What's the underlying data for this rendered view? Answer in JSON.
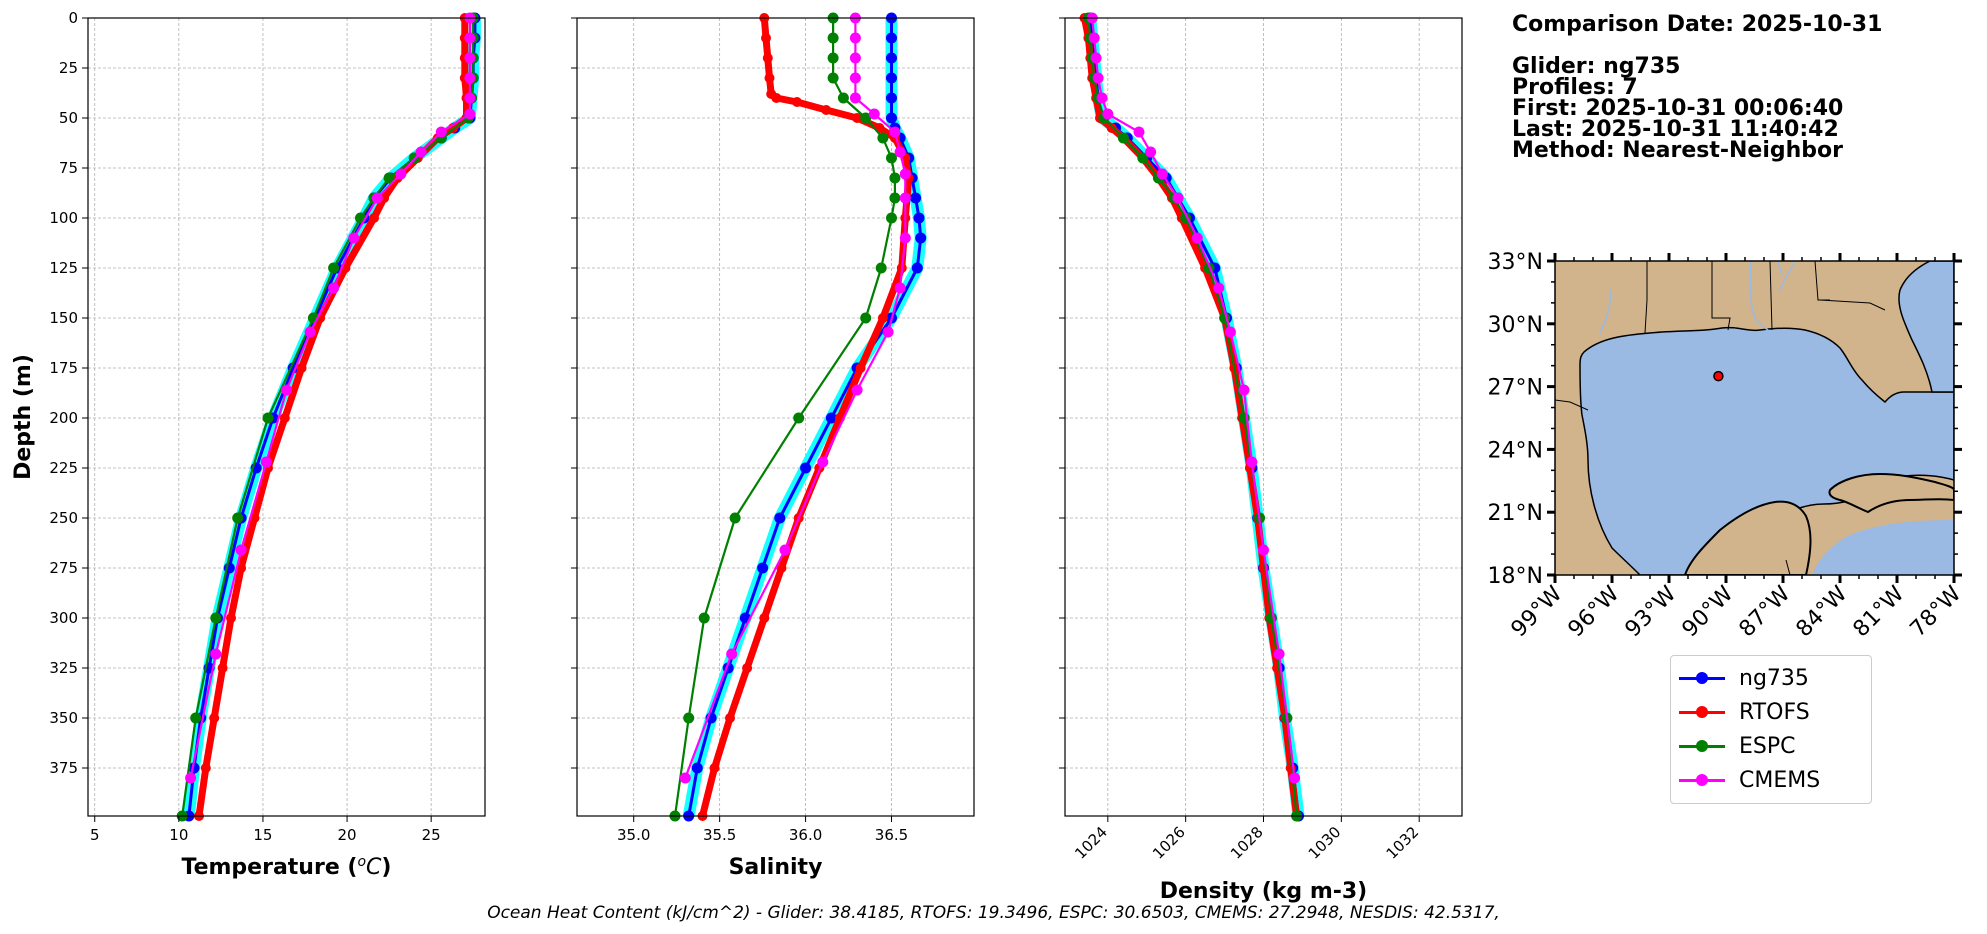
{
  "info": {
    "comparison_date": "Comparison Date: 2025-10-31",
    "glider": "Glider: ng735",
    "profiles": "Profiles: 7",
    "first": "First: 2025-10-31 00:06:40",
    "last": "Last: 2025-10-31 11:40:42",
    "method": "Method: Nearest-Neighbor"
  },
  "footer": "Ocean Heat Content (kJ/cm^2) - Glider: 38.4185,  RTOFS: 19.3496,  ESPC: 30.6503,  CMEMS: 27.2948,  NESDIS: 42.5317,",
  "colors": {
    "glider": "#0000ff",
    "glider_raw": "#00ffff",
    "rtofs": "#ff0000",
    "espc": "#008000",
    "cmems": "#ff00ff",
    "land": "#d2b48c",
    "ocean": "#9ab9e3"
  },
  "legend": [
    {
      "label": "ng735",
      "color": "#0000ff"
    },
    {
      "label": "RTOFS",
      "color": "#ff0000"
    },
    {
      "label": "ESPC",
      "color": "#008000"
    },
    {
      "label": "CMEMS",
      "color": "#ff00ff"
    }
  ],
  "chart_data": [
    {
      "type": "line",
      "xlabel": "Temperature ($^oC$)",
      "ylabel": "Depth (m)",
      "xlim": [
        4.6,
        28.2
      ],
      "ylim": [
        399,
        0
      ],
      "xticks": [
        5,
        10,
        15,
        20,
        25
      ],
      "yticks": [
        0,
        25,
        50,
        75,
        100,
        125,
        150,
        175,
        200,
        225,
        250,
        275,
        300,
        325,
        350,
        375
      ],
      "grid": true,
      "series": [
        {
          "name": "ng735",
          "depth": [
            0,
            10,
            20,
            30,
            40,
            50,
            55,
            60,
            70,
            80,
            90,
            100,
            125,
            150,
            175,
            200,
            225,
            250,
            275,
            300,
            325,
            350,
            375,
            399
          ],
          "values": [
            27.6,
            27.6,
            27.5,
            27.5,
            27.4,
            27.3,
            26.4,
            25.6,
            24.0,
            22.6,
            21.6,
            21.0,
            19.4,
            18.1,
            16.8,
            15.6,
            14.6,
            13.7,
            13.0,
            12.3,
            11.8,
            11.3,
            10.9,
            10.6
          ]
        },
        {
          "name": "RTOFS",
          "depth": [
            0,
            10,
            20,
            30,
            40,
            50,
            55,
            60,
            70,
            80,
            90,
            100,
            125,
            150,
            175,
            200,
            225,
            250,
            275,
            300,
            325,
            350,
            375,
            399
          ],
          "values": [
            27.0,
            27.0,
            27.0,
            27.0,
            27.1,
            27.1,
            26.3,
            25.4,
            24.2,
            23.0,
            22.2,
            21.6,
            19.9,
            18.4,
            17.3,
            16.3,
            15.3,
            14.5,
            13.7,
            13.1,
            12.6,
            12.1,
            11.6,
            11.2
          ]
        },
        {
          "name": "ESPC",
          "depth": [
            0,
            10,
            20,
            30,
            40,
            50,
            60,
            70,
            80,
            90,
            100,
            125,
            150,
            200,
            250,
            300,
            350,
            399
          ],
          "values": [
            27.5,
            27.5,
            27.5,
            27.5,
            27.4,
            27.2,
            25.6,
            24.0,
            22.5,
            21.6,
            20.8,
            19.2,
            18.0,
            15.3,
            13.5,
            12.2,
            11.0,
            10.2
          ]
        },
        {
          "name": "CMEMS",
          "depth": [
            0,
            10,
            20,
            30,
            40,
            48,
            57,
            67,
            78,
            90,
            110,
            135,
            157,
            186,
            222,
            266,
            318,
            380
          ],
          "values": [
            27.3,
            27.3,
            27.3,
            27.3,
            27.3,
            27.3,
            25.6,
            24.4,
            23.2,
            21.8,
            20.4,
            19.2,
            17.8,
            16.4,
            15.2,
            13.7,
            12.2,
            10.7
          ]
        }
      ]
    },
    {
      "type": "line",
      "xlabel": "Salinity",
      "xlim": [
        34.67,
        36.98
      ],
      "ylim": [
        399,
        0
      ],
      "xticks": [
        35.0,
        35.5,
        36.0,
        36.5
      ],
      "yticks": [
        0,
        25,
        50,
        75,
        100,
        125,
        150,
        175,
        200,
        225,
        250,
        275,
        300,
        325,
        350,
        375
      ],
      "grid": true,
      "series": [
        {
          "name": "ng735",
          "depth": [
            0,
            10,
            20,
            30,
            40,
            50,
            55,
            60,
            70,
            80,
            90,
            100,
            110,
            125,
            150,
            175,
            200,
            225,
            250,
            275,
            300,
            325,
            350,
            375,
            399
          ],
          "values": [
            36.5,
            36.5,
            36.5,
            36.5,
            36.5,
            36.5,
            36.52,
            36.55,
            36.6,
            36.62,
            36.64,
            36.66,
            36.67,
            36.65,
            36.5,
            36.3,
            36.15,
            36.0,
            35.85,
            35.75,
            35.65,
            35.55,
            35.45,
            35.37,
            35.32
          ]
        },
        {
          "name": "RTOFS",
          "depth": [
            0,
            10,
            20,
            30,
            38,
            40,
            42,
            46,
            50,
            55,
            60,
            70,
            80,
            100,
            125,
            150,
            175,
            200,
            225,
            250,
            275,
            300,
            325,
            350,
            375,
            399
          ],
          "values": [
            35.76,
            35.77,
            35.78,
            35.79,
            35.8,
            35.83,
            35.95,
            36.12,
            36.3,
            36.43,
            36.52,
            36.58,
            36.6,
            36.58,
            36.56,
            36.45,
            36.32,
            36.2,
            36.08,
            35.96,
            35.86,
            35.76,
            35.66,
            35.56,
            35.47,
            35.4
          ]
        },
        {
          "name": "ESPC",
          "depth": [
            0,
            10,
            20,
            30,
            40,
            50,
            60,
            70,
            80,
            90,
            100,
            125,
            150,
            200,
            250,
            300,
            350,
            399
          ],
          "values": [
            36.16,
            36.16,
            36.16,
            36.16,
            36.22,
            36.35,
            36.45,
            36.5,
            36.52,
            36.52,
            36.5,
            36.44,
            36.35,
            35.96,
            35.59,
            35.41,
            35.32,
            35.24
          ]
        },
        {
          "name": "CMEMS",
          "depth": [
            0,
            10,
            20,
            30,
            40,
            48,
            57,
            67,
            78,
            90,
            110,
            135,
            157,
            186,
            222,
            266,
            318,
            380
          ],
          "values": [
            36.29,
            36.29,
            36.29,
            36.29,
            36.29,
            36.4,
            36.52,
            36.55,
            36.58,
            36.58,
            36.58,
            36.55,
            36.48,
            36.3,
            36.1,
            35.88,
            35.57,
            35.3
          ]
        }
      ]
    },
    {
      "type": "line",
      "xlabel": "Density (kg m-3)",
      "xlim": [
        1022.9,
        1033.1
      ],
      "ylim": [
        399,
        0
      ],
      "xticks": [
        1024,
        1026,
        1028,
        1030,
        1032
      ],
      "yticks": [
        0,
        25,
        50,
        75,
        100,
        125,
        150,
        175,
        200,
        225,
        250,
        275,
        300,
        325,
        350,
        375
      ],
      "grid": true,
      "series": [
        {
          "name": "ng735",
          "depth": [
            0,
            10,
            20,
            30,
            40,
            50,
            55,
            60,
            70,
            80,
            90,
            100,
            125,
            150,
            175,
            200,
            225,
            250,
            275,
            300,
            325,
            350,
            375,
            399
          ],
          "values": [
            1023.55,
            1023.6,
            1023.65,
            1023.7,
            1023.75,
            1023.85,
            1024.2,
            1024.5,
            1025.0,
            1025.5,
            1025.8,
            1026.1,
            1026.75,
            1027.05,
            1027.3,
            1027.5,
            1027.7,
            1027.85,
            1028.0,
            1028.2,
            1028.4,
            1028.55,
            1028.75,
            1028.9
          ]
        },
        {
          "name": "RTOFS",
          "depth": [
            0,
            10,
            20,
            30,
            40,
            50,
            55,
            60,
            70,
            80,
            90,
            100,
            125,
            150,
            175,
            200,
            225,
            250,
            275,
            300,
            325,
            350,
            375,
            399
          ],
          "values": [
            1023.4,
            1023.5,
            1023.55,
            1023.6,
            1023.7,
            1023.8,
            1024.1,
            1024.4,
            1024.9,
            1025.3,
            1025.65,
            1025.9,
            1026.5,
            1027.0,
            1027.25,
            1027.45,
            1027.65,
            1027.85,
            1028.0,
            1028.15,
            1028.35,
            1028.55,
            1028.7,
            1028.85
          ]
        },
        {
          "name": "ESPC",
          "depth": [
            0,
            10,
            20,
            30,
            40,
            50,
            60,
            70,
            80,
            90,
            100,
            125,
            150,
            200,
            250,
            300,
            350,
            399
          ],
          "values": [
            1023.5,
            1023.55,
            1023.6,
            1023.65,
            1023.75,
            1023.9,
            1024.4,
            1024.9,
            1025.3,
            1025.7,
            1026.0,
            1026.6,
            1027.0,
            1027.5,
            1027.9,
            1028.2,
            1028.6,
            1028.85
          ]
        },
        {
          "name": "CMEMS",
          "depth": [
            0,
            10,
            20,
            30,
            40,
            48,
            57,
            67,
            78,
            90,
            110,
            135,
            157,
            186,
            222,
            266,
            318,
            380
          ],
          "values": [
            1023.6,
            1023.65,
            1023.7,
            1023.75,
            1023.85,
            1024.0,
            1024.8,
            1025.1,
            1025.4,
            1025.8,
            1026.3,
            1026.85,
            1027.15,
            1027.5,
            1027.7,
            1028.0,
            1028.4,
            1028.8
          ]
        }
      ]
    },
    {
      "type": "map",
      "lon_range": [
        -99,
        -78
      ],
      "lat_range": [
        18,
        33
      ],
      "lat_ticks": [
        "33°N",
        "30°N",
        "27°N",
        "24°N",
        "21°N",
        "18°N"
      ],
      "lon_ticks": [
        "99°W",
        "96°W",
        "93°W",
        "90°W",
        "87°W",
        "84°W",
        "81°W",
        "78°W"
      ],
      "markers": [
        {
          "lon": -90.4,
          "lat": 27.5
        }
      ]
    }
  ]
}
